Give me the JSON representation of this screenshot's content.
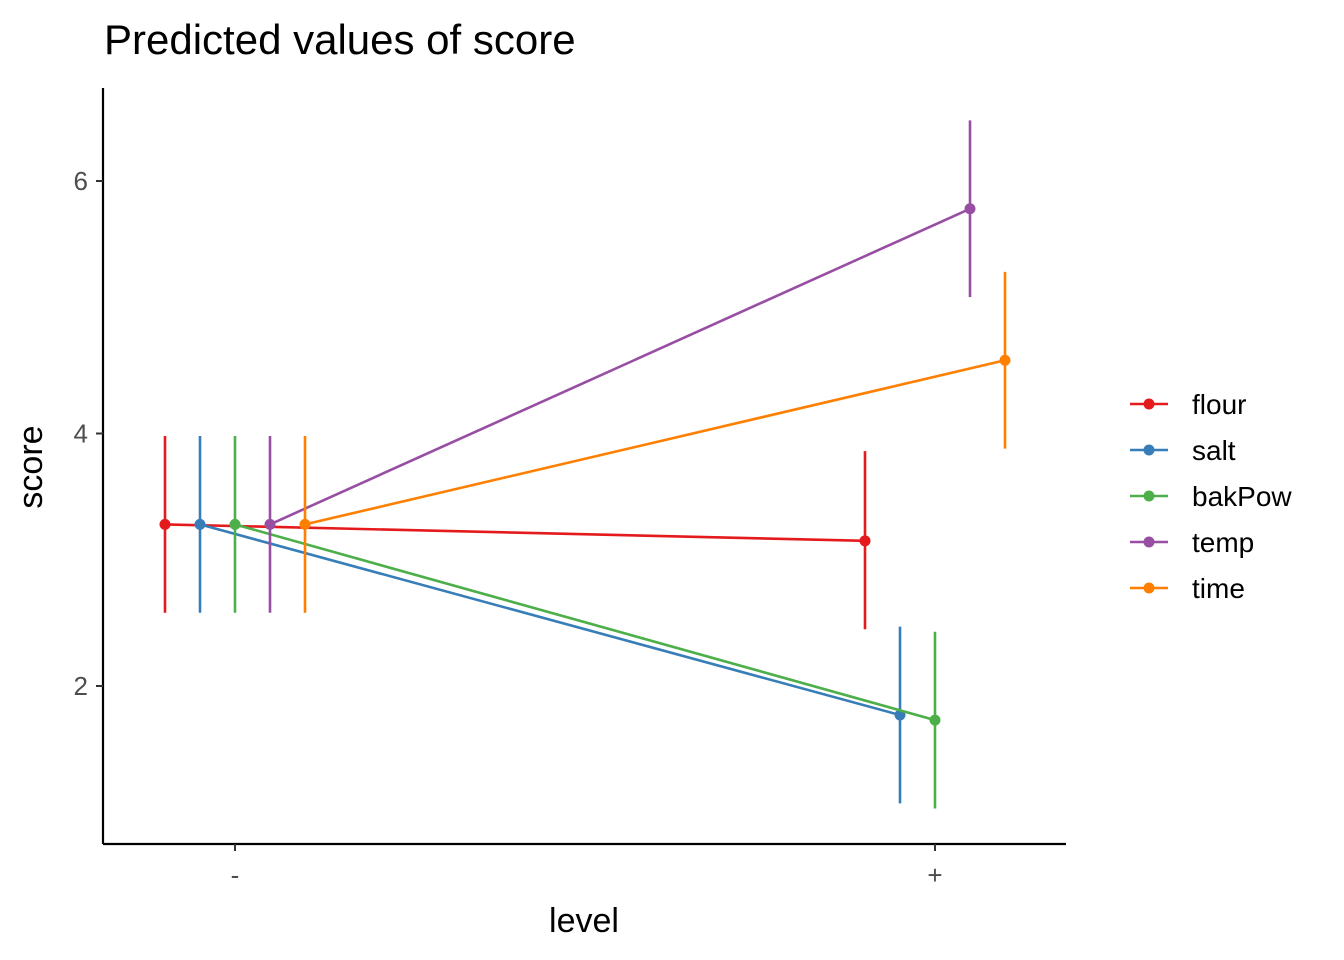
{
  "chart_data": {
    "type": "line",
    "title": "Predicted values of score",
    "xlabel": "level",
    "ylabel": "score",
    "categories": [
      "-",
      "+"
    ],
    "ylim": [
      0.9,
      6.75
    ],
    "yticks": [
      2,
      4,
      6
    ],
    "grid": false,
    "legend_position": "right",
    "series": [
      {
        "name": "flour",
        "color": "#E41A1C",
        "values": [
          3.28,
          3.15
        ],
        "lower": [
          2.58,
          2.45
        ],
        "upper": [
          3.98,
          3.86
        ]
      },
      {
        "name": "salt",
        "color": "#377EB8",
        "values": [
          3.28,
          1.77
        ],
        "lower": [
          2.58,
          1.07
        ],
        "upper": [
          3.98,
          2.47
        ]
      },
      {
        "name": "bakPow",
        "color": "#4DAF4A",
        "values": [
          3.28,
          1.73
        ],
        "lower": [
          2.58,
          1.03
        ],
        "upper": [
          3.98,
          2.43
        ]
      },
      {
        "name": "temp",
        "color": "#984EA3",
        "values": [
          3.28,
          5.78
        ],
        "lower": [
          2.58,
          5.08
        ],
        "upper": [
          3.98,
          6.48
        ]
      },
      {
        "name": "time",
        "color": "#FF7F00",
        "values": [
          3.28,
          4.58
        ],
        "lower": [
          2.58,
          3.88
        ],
        "upper": [
          3.98,
          5.28
        ]
      }
    ]
  }
}
